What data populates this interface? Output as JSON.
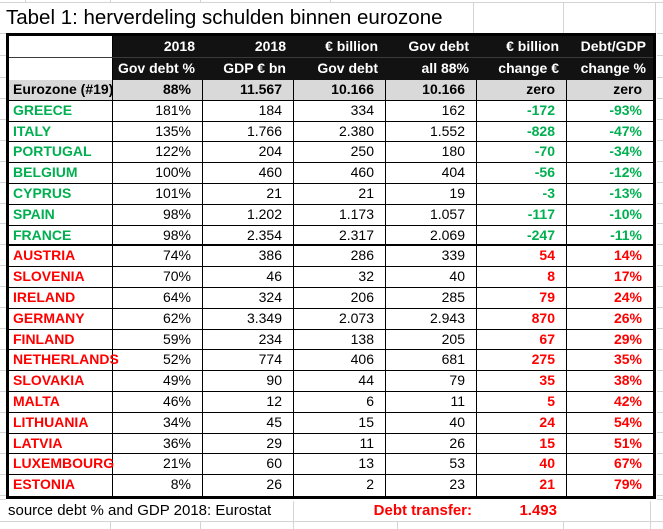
{
  "title": "Tabel 1: herverdeling schulden binnen eurozone",
  "colors": {
    "positive_green": "#00B050",
    "negative_red": "#FF0000",
    "header_bg": "#121212",
    "eurozone_row_bg": "#D9D9D9",
    "gridline": "#D4D4D4"
  },
  "header": {
    "row1": [
      "",
      "2018",
      "2018",
      "€ billion",
      "Gov debt",
      "€ billion",
      "Debt/GDP"
    ],
    "row2": [
      "",
      "Gov debt %",
      "GDP € bn",
      "Gov debt",
      "all 88%",
      "change €",
      "change %"
    ]
  },
  "eurozone": {
    "label": "Eurozone (#19)",
    "values": [
      "88%",
      "11.567",
      "10.166",
      "10.166",
      "zero",
      "zero"
    ]
  },
  "rows": [
    {
      "country": "GREECE",
      "group": "green",
      "debt_pct": "181%",
      "gdp": "184",
      "debt": "334",
      "debt88": "162",
      "change_e": "-172",
      "change_pct": "-93%"
    },
    {
      "country": "ITALY",
      "group": "green",
      "debt_pct": "135%",
      "gdp": "1.766",
      "debt": "2.380",
      "debt88": "1.552",
      "change_e": "-828",
      "change_pct": "-47%"
    },
    {
      "country": "PORTUGAL",
      "group": "green",
      "debt_pct": "122%",
      "gdp": "204",
      "debt": "250",
      "debt88": "180",
      "change_e": "-70",
      "change_pct": "-34%"
    },
    {
      "country": "BELGIUM",
      "group": "green",
      "debt_pct": "100%",
      "gdp": "460",
      "debt": "460",
      "debt88": "404",
      "change_e": "-56",
      "change_pct": "-12%"
    },
    {
      "country": "CYPRUS",
      "group": "green",
      "debt_pct": "101%",
      "gdp": "21",
      "debt": "21",
      "debt88": "19",
      "change_e": "-3",
      "change_pct": "-13%"
    },
    {
      "country": "SPAIN",
      "group": "green",
      "debt_pct": "98%",
      "gdp": "1.202",
      "debt": "1.173",
      "debt88": "1.057",
      "change_e": "-117",
      "change_pct": "-10%"
    },
    {
      "country": "FRANCE",
      "group": "green",
      "debt_pct": "98%",
      "gdp": "2.354",
      "debt": "2.317",
      "debt88": "2.069",
      "change_e": "-247",
      "change_pct": "-11%"
    },
    {
      "country": "AUSTRIA",
      "group": "red",
      "debt_pct": "74%",
      "gdp": "386",
      "debt": "286",
      "debt88": "339",
      "change_e": "54",
      "change_pct": "14%"
    },
    {
      "country": "SLOVENIA",
      "group": "red",
      "debt_pct": "70%",
      "gdp": "46",
      "debt": "32",
      "debt88": "40",
      "change_e": "8",
      "change_pct": "17%"
    },
    {
      "country": "IRELAND",
      "group": "red",
      "debt_pct": "64%",
      "gdp": "324",
      "debt": "206",
      "debt88": "285",
      "change_e": "79",
      "change_pct": "24%"
    },
    {
      "country": "GERMANY",
      "group": "red",
      "debt_pct": "62%",
      "gdp": "3.349",
      "debt": "2.073",
      "debt88": "2.943",
      "change_e": "870",
      "change_pct": "26%"
    },
    {
      "country": "FINLAND",
      "group": "red",
      "debt_pct": "59%",
      "gdp": "234",
      "debt": "138",
      "debt88": "205",
      "change_e": "67",
      "change_pct": "29%"
    },
    {
      "country": "NETHERLANDS",
      "group": "red",
      "debt_pct": "52%",
      "gdp": "774",
      "debt": "406",
      "debt88": "681",
      "change_e": "275",
      "change_pct": "35%"
    },
    {
      "country": "SLOVAKIA",
      "group": "red",
      "debt_pct": "49%",
      "gdp": "90",
      "debt": "44",
      "debt88": "79",
      "change_e": "35",
      "change_pct": "38%"
    },
    {
      "country": "MALTA",
      "group": "red",
      "debt_pct": "46%",
      "gdp": "12",
      "debt": "6",
      "debt88": "11",
      "change_e": "5",
      "change_pct": "42%"
    },
    {
      "country": "LITHUANIA",
      "group": "red",
      "debt_pct": "34%",
      "gdp": "45",
      "debt": "15",
      "debt88": "40",
      "change_e": "24",
      "change_pct": "54%"
    },
    {
      "country": "LATVIA",
      "group": "red",
      "debt_pct": "36%",
      "gdp": "29",
      "debt": "11",
      "debt88": "26",
      "change_e": "15",
      "change_pct": "51%"
    },
    {
      "country": "LUXEMBOURG",
      "group": "red",
      "debt_pct": "21%",
      "gdp": "60",
      "debt": "13",
      "debt88": "53",
      "change_e": "40",
      "change_pct": "67%"
    },
    {
      "country": "ESTONIA",
      "group": "red",
      "debt_pct": "8%",
      "gdp": "26",
      "debt": "2",
      "debt88": "23",
      "change_e": "21",
      "change_pct": "79%"
    }
  ],
  "footer": {
    "source": "source debt % and GDP 2018: Eurostat",
    "debt_transfer_label": "Debt transfer:",
    "debt_transfer_value": "1.493"
  }
}
